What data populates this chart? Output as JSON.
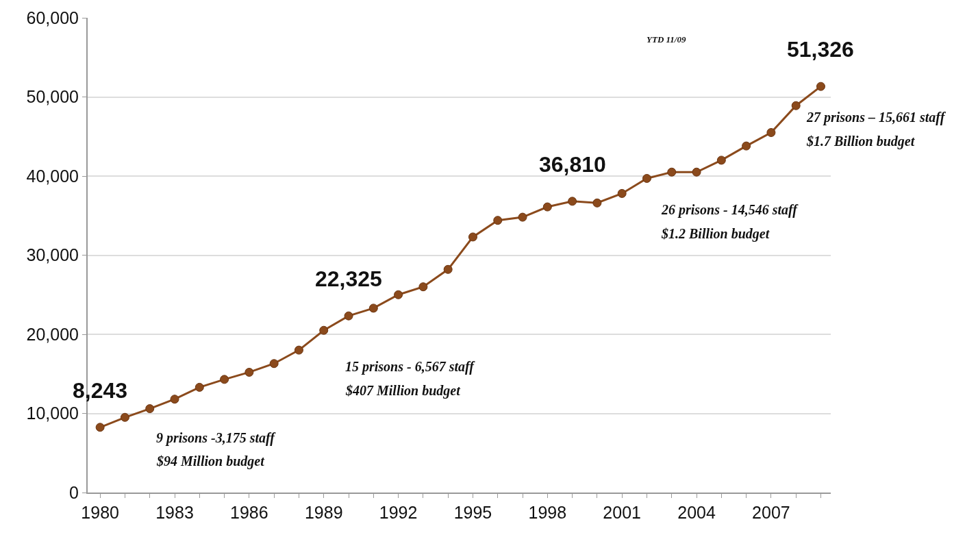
{
  "chart_data": {
    "type": "line",
    "x": [
      1980,
      1981,
      1982,
      1983,
      1984,
      1985,
      1986,
      1987,
      1988,
      1989,
      1990,
      1991,
      1992,
      1993,
      1994,
      1995,
      1996,
      1997,
      1998,
      1999,
      2000,
      2001,
      2002,
      2003,
      2004,
      2005,
      2006,
      2007,
      2008,
      2009
    ],
    "series": [
      {
        "color": "#8b4a1c",
        "values": [
          8243,
          9500,
          10600,
          11800,
          13300,
          14300,
          15200,
          16300,
          18000,
          20500,
          22325,
          23300,
          25000,
          26000,
          28200,
          32300,
          34400,
          34800,
          36100,
          36810,
          36600,
          37800,
          39700,
          40500,
          40500,
          42000,
          43800,
          45500,
          48900,
          51326
        ]
      }
    ],
    "xlim": [
      1979.5,
      2009.4
    ],
    "xticks": [
      {
        "value": 1980,
        "label": "1980"
      },
      {
        "value": 1981,
        "label": null
      },
      {
        "value": 1982,
        "label": null
      },
      {
        "value": 1983,
        "label": "1983"
      },
      {
        "value": 1984,
        "label": null
      },
      {
        "value": 1985,
        "label": null
      },
      {
        "value": 1986,
        "label": "1986"
      },
      {
        "value": 1987,
        "label": null
      },
      {
        "value": 1988,
        "label": null
      },
      {
        "value": 1989,
        "label": "1989"
      },
      {
        "value": 1990,
        "label": null
      },
      {
        "value": 1991,
        "label": null
      },
      {
        "value": 1992,
        "label": "1992"
      },
      {
        "value": 1993,
        "label": null
      },
      {
        "value": 1994,
        "label": null
      },
      {
        "value": 1995,
        "label": "1995"
      },
      {
        "value": 1996,
        "label": null
      },
      {
        "value": 1997,
        "label": null
      },
      {
        "value": 1998,
        "label": "1998"
      },
      {
        "value": 1999,
        "label": null
      },
      {
        "value": 2000,
        "label": null
      },
      {
        "value": 2001,
        "label": "2001"
      },
      {
        "value": 2002,
        "label": null
      },
      {
        "value": 2003,
        "label": null
      },
      {
        "value": 2004,
        "label": "2004"
      },
      {
        "value": 2005,
        "label": null
      },
      {
        "value": 2006,
        "label": null
      },
      {
        "value": 2007,
        "label": "2007"
      },
      {
        "value": 2008,
        "label": null
      },
      {
        "value": 2009,
        "label": null
      }
    ],
    "ylim": [
      0,
      60000
    ],
    "yticks": [
      {
        "value": 0,
        "label": "0"
      },
      {
        "value": 10000,
        "label": "10,000"
      },
      {
        "value": 20000,
        "label": "20,000"
      },
      {
        "value": 30000,
        "label": "30,000"
      },
      {
        "value": 40000,
        "label": "40,000"
      },
      {
        "value": 50000,
        "label": "50,000"
      },
      {
        "value": 60000,
        "label": "60,000"
      }
    ],
    "grid": "y",
    "marker": "circle",
    "line_style": "solid",
    "annotations": [
      {
        "text": "8,243",
        "x": 1980,
        "y": 8243
      },
      {
        "text": "22,325",
        "x": 1990,
        "y": 22325
      },
      {
        "text": "36,810",
        "x": 1999,
        "y": 36810
      },
      {
        "text": "51,326",
        "x": 2009,
        "y": 51326
      },
      "9 prisons -3,175 staff",
      "$94 Million budget",
      "15 prisons - 6,567 staff",
      "$407 Million budget",
      "26 prisons - 14,546 staff",
      "$1.2 Billion budget",
      "27 prisons – 15,661 staff",
      "$1.7 Billion budget",
      "YTD 11/09"
    ]
  }
}
